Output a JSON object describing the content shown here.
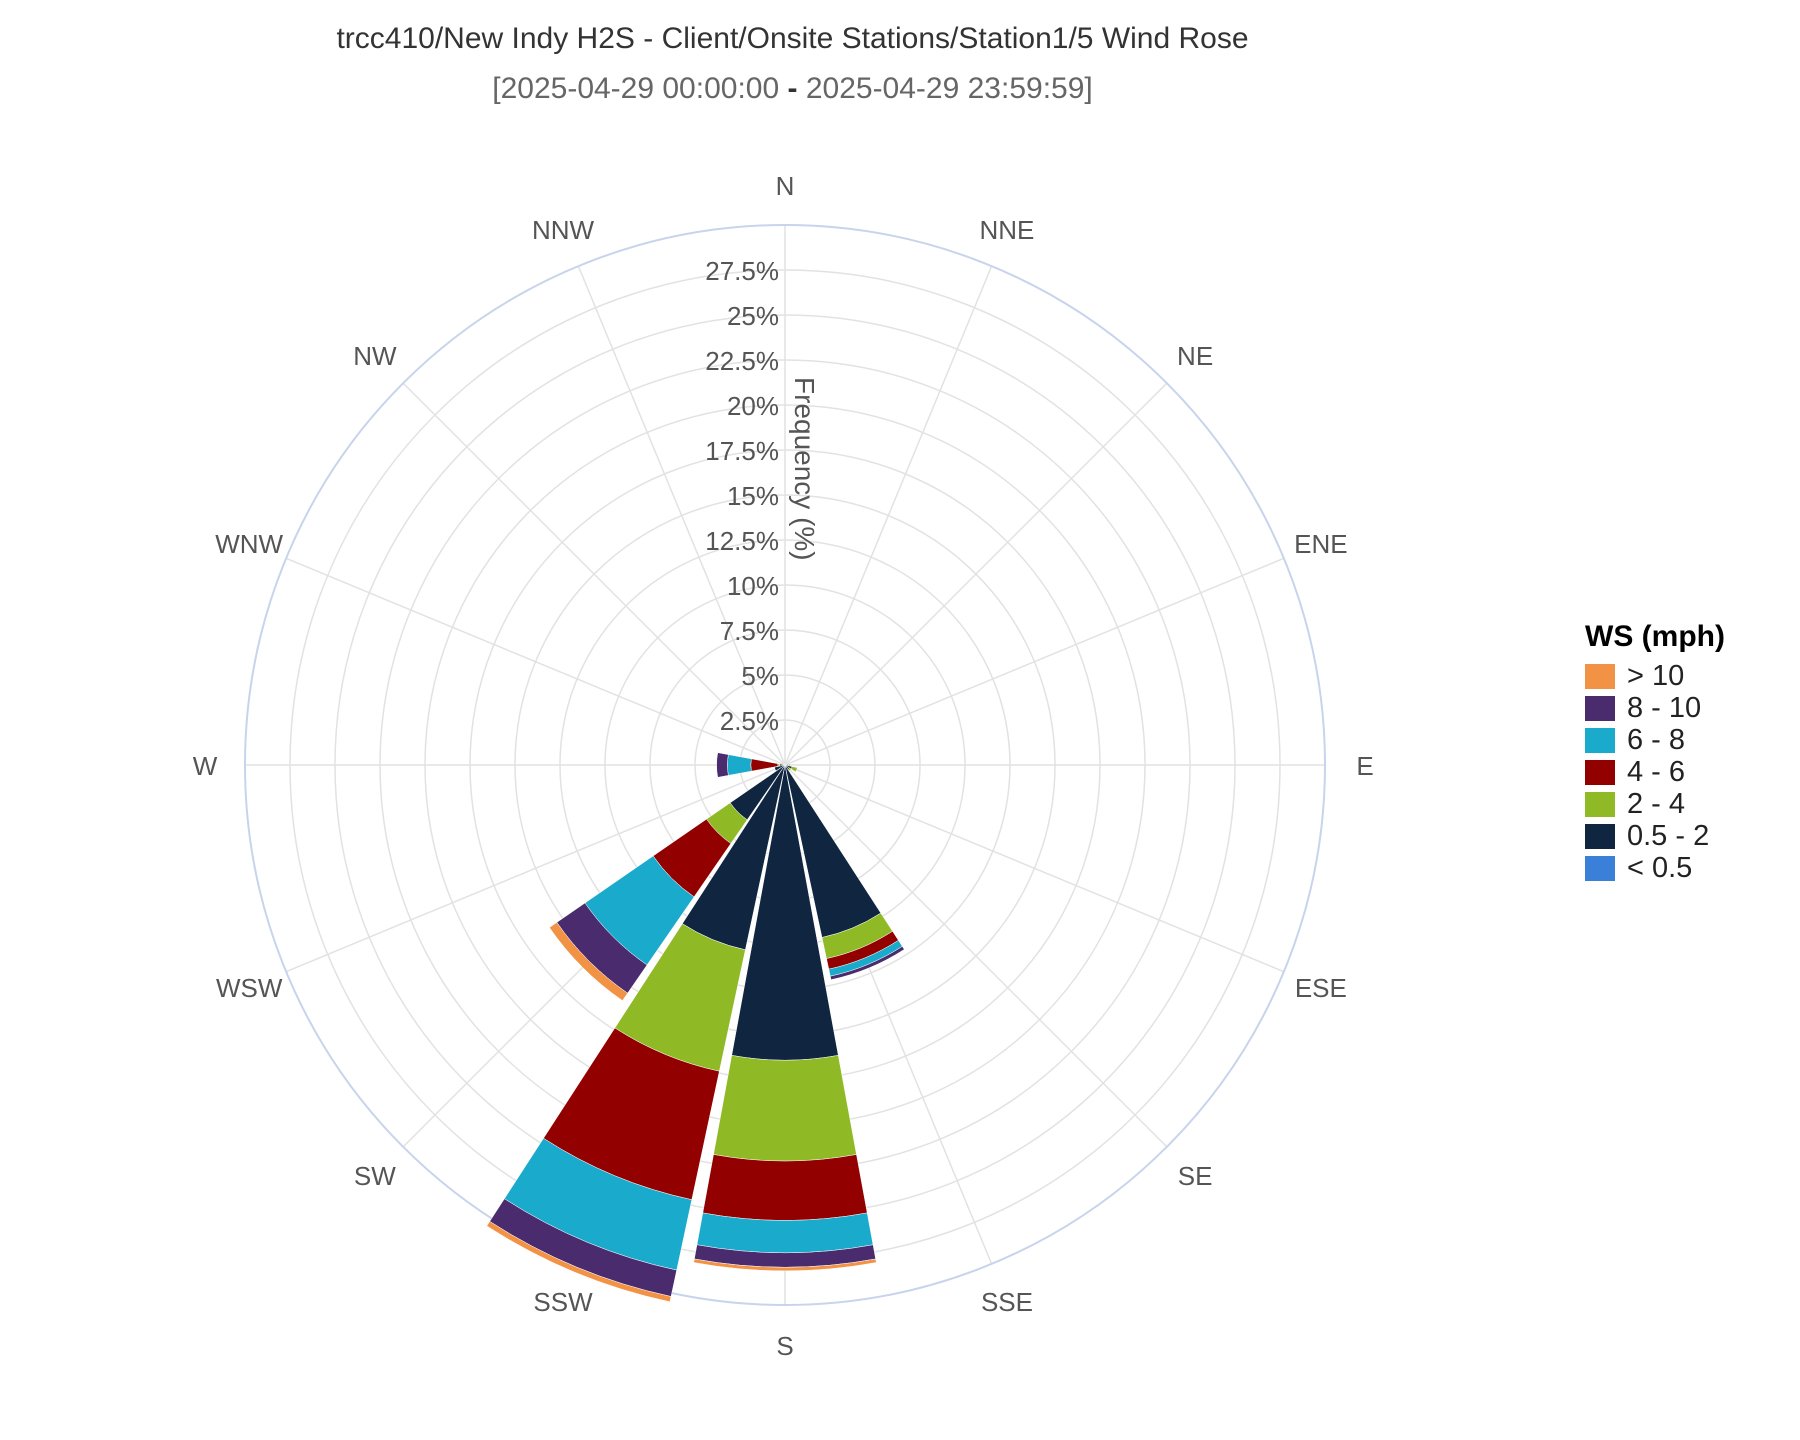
{
  "title": "trcc410/New Indy H2S - Client/Onsite Stations/Station1/5 Wind Rose",
  "subtitle_parts": {
    "start": "[2025-04-29 00:00:00",
    "separator": " - ",
    "end": "2025-04-29 23:59:59]"
  },
  "chart_data": {
    "type": "wind-rose",
    "radial_axis": {
      "title": "Frequency (%)",
      "range": [
        0,
        30
      ],
      "tick_labels": [
        "2.5%",
        "5%",
        "7.5%",
        "10%",
        "12.5%",
        "15%",
        "17.5%",
        "20%",
        "22.5%",
        "25%",
        "27.5%"
      ],
      "tick_values": [
        2.5,
        5,
        7.5,
        10,
        12.5,
        15,
        17.5,
        20,
        22.5,
        25,
        27.5
      ]
    },
    "directions": [
      "N",
      "NNE",
      "NE",
      "ENE",
      "E",
      "ESE",
      "SE",
      "SSE",
      "S",
      "SSW",
      "SW",
      "WSW",
      "W",
      "WNW",
      "NW",
      "NNW"
    ],
    "legend_title": "WS (mph)",
    "series": [
      {
        "name": "< 0.5",
        "color": "#3a80d8",
        "values": [
          0,
          0,
          0,
          0,
          0,
          0,
          0,
          0,
          0,
          0,
          0,
          0,
          0,
          0,
          0,
          0
        ]
      },
      {
        "name": "0.5 - 2",
        "color": "#0f2540",
        "values": [
          0,
          0,
          0,
          0,
          0.2,
          0.4,
          0.3,
          9.8,
          16.4,
          10.5,
          3.7,
          0.6,
          0.3,
          0,
          0,
          0
        ]
      },
      {
        "name": "2 - 4",
        "color": "#8fba25",
        "values": [
          0,
          0,
          0,
          0,
          0.1,
          0.3,
          0.1,
          1.2,
          5.6,
          6.9,
          1.6,
          0,
          0.1,
          0,
          0,
          0
        ]
      },
      {
        "name": "4 - 6",
        "color": "#930000",
        "values": [
          0,
          0,
          0,
          0,
          0,
          0,
          0,
          0.6,
          3.3,
          7.3,
          3.6,
          0,
          1.5,
          0,
          0,
          0
        ]
      },
      {
        "name": "6 - 8",
        "color": "#1aabcc",
        "values": [
          0,
          0,
          0,
          0,
          0,
          0,
          0,
          0.4,
          1.8,
          4.0,
          4.6,
          0,
          1.3,
          0,
          0,
          0
        ]
      },
      {
        "name": "8 - 10",
        "color": "#4a2b6e",
        "values": [
          0,
          0,
          0,
          0,
          0,
          0,
          0,
          0.2,
          0.8,
          1.5,
          1.9,
          0,
          0.6,
          0,
          0,
          0
        ]
      },
      {
        "name": "> 10",
        "color": "#f19245",
        "values": [
          0,
          0,
          0,
          0,
          0,
          0,
          0,
          0,
          0.2,
          0.3,
          0.5,
          0,
          0,
          0,
          0,
          0
        ]
      }
    ],
    "grid": true,
    "legend_position": "right"
  }
}
